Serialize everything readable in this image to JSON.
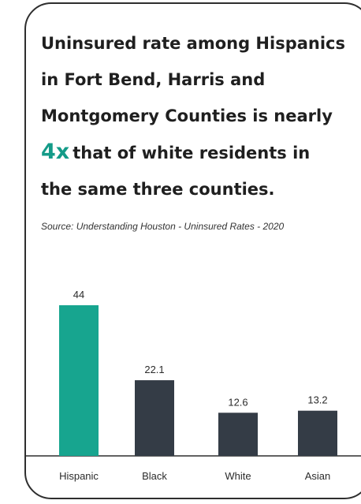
{
  "headline": {
    "line1": "Uninsured rate among Hispanics",
    "line2": "in Fort Bend, Harris and",
    "line3": "Montgomery Counties is nearly",
    "highlight": "4x",
    "line4_rest": "that of white residents in",
    "line5": "the same three counties."
  },
  "source": "Source: Understanding Houston - Uninsured Rates - 2020",
  "colors": {
    "highlight": "#149b88",
    "bar_highlight": "#17a58f",
    "bar_default": "#343c46"
  },
  "chart_data": {
    "type": "bar",
    "title": "",
    "xlabel": "",
    "ylabel": "",
    "categories": [
      "Hispanic",
      "Black",
      "White",
      "Asian"
    ],
    "values": [
      44,
      22.1,
      12.6,
      13.2
    ],
    "value_labels": [
      "44",
      "22.1",
      "12.6",
      "13.2"
    ],
    "highlighted": [
      "Hispanic"
    ],
    "ylim": [
      0,
      44
    ],
    "grid": false,
    "legend": "none"
  }
}
